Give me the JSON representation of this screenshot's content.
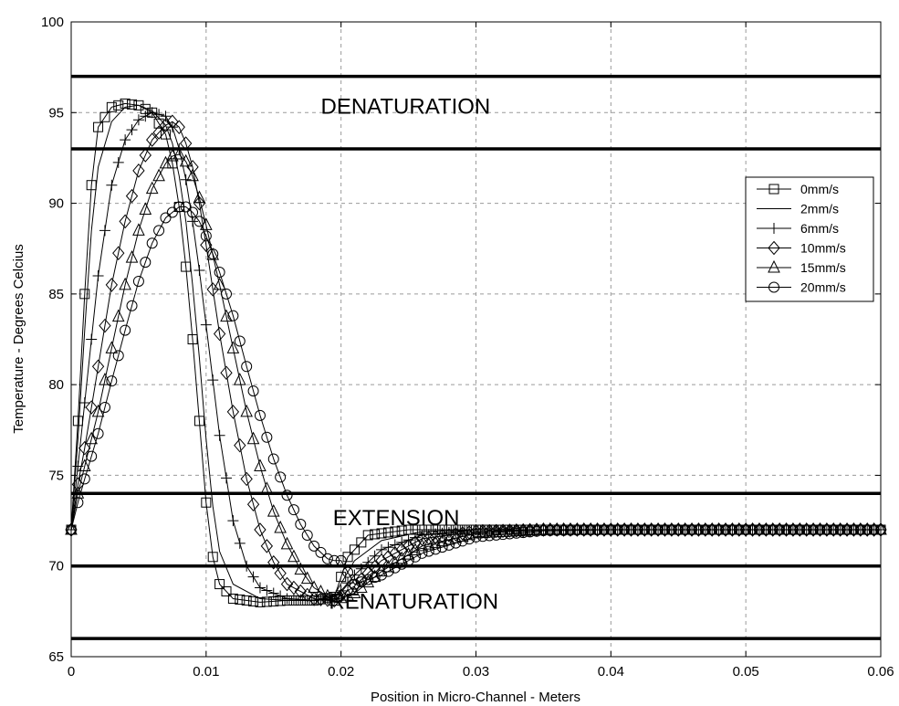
{
  "chart_data": {
    "type": "line",
    "title": "",
    "xlabel": "Position in Micro-Channel - Meters",
    "ylabel": "Temperature - Degrees Celcius",
    "xlim": [
      0,
      0.06
    ],
    "ylim": [
      65,
      100
    ],
    "x_ticks": [
      0,
      0.01,
      0.02,
      0.03,
      0.04,
      0.05,
      0.06
    ],
    "x_tick_labels": [
      "0",
      "0.01",
      "0.02",
      "0.03",
      "0.04",
      "0.05",
      "0.06"
    ],
    "y_ticks": [
      65,
      70,
      75,
      80,
      85,
      90,
      95,
      100
    ],
    "y_tick_labels": [
      "65",
      "70",
      "75",
      "80",
      "85",
      "90",
      "95",
      "100"
    ],
    "grid": true,
    "legend_position": "right",
    "reference_lines": [
      97,
      93,
      74,
      70,
      66
    ],
    "annotations": [
      {
        "text": "DENATURATION",
        "x": 0.0185,
        "y": 95.4
      },
      {
        "text": "EXTENSION",
        "x": 0.0194,
        "y": 72.7
      },
      {
        "text": "RENATURATION",
        "x": 0.0191,
        "y": 68.1
      }
    ],
    "series": [
      {
        "name": "0mm/s",
        "marker": "square",
        "points": [
          [
            0,
            72
          ],
          [
            0.0005,
            78
          ],
          [
            0.001,
            85
          ],
          [
            0.0015,
            91
          ],
          [
            0.002,
            94.2
          ],
          [
            0.003,
            95.3
          ],
          [
            0.004,
            95.5
          ],
          [
            0.005,
            95.4
          ],
          [
            0.006,
            95
          ],
          [
            0.007,
            93.8
          ],
          [
            0.0075,
            92.2
          ],
          [
            0.008,
            89.8
          ],
          [
            0.0085,
            86.5
          ],
          [
            0.009,
            82.5
          ],
          [
            0.0095,
            78
          ],
          [
            0.01,
            73.5
          ],
          [
            0.0105,
            70.5
          ],
          [
            0.011,
            69
          ],
          [
            0.012,
            68.2
          ],
          [
            0.014,
            68
          ],
          [
            0.016,
            68.1
          ],
          [
            0.018,
            68.1
          ],
          [
            0.0195,
            68.3
          ],
          [
            0.0205,
            70.5
          ],
          [
            0.022,
            71.7
          ],
          [
            0.025,
            72
          ],
          [
            0.03,
            72
          ],
          [
            0.04,
            72
          ],
          [
            0.05,
            72
          ],
          [
            0.06,
            72
          ]
        ]
      },
      {
        "name": "2mm/s",
        "marker": "none",
        "points": [
          [
            0,
            72
          ],
          [
            0.0005,
            77
          ],
          [
            0.001,
            83
          ],
          [
            0.0015,
            88.5
          ],
          [
            0.002,
            92
          ],
          [
            0.003,
            94.5
          ],
          [
            0.004,
            95.3
          ],
          [
            0.005,
            95.4
          ],
          [
            0.006,
            95.1
          ],
          [
            0.007,
            94.3
          ],
          [
            0.0075,
            93.3
          ],
          [
            0.008,
            91.5
          ],
          [
            0.0085,
            89
          ],
          [
            0.009,
            85.5
          ],
          [
            0.0095,
            81.5
          ],
          [
            0.01,
            77
          ],
          [
            0.0105,
            73.3
          ],
          [
            0.011,
            70.8
          ],
          [
            0.012,
            69
          ],
          [
            0.014,
            68.2
          ],
          [
            0.016,
            68.1
          ],
          [
            0.018,
            68.1
          ],
          [
            0.0195,
            68.4
          ],
          [
            0.021,
            70.3
          ],
          [
            0.023,
            71.4
          ],
          [
            0.026,
            71.9
          ],
          [
            0.03,
            72
          ],
          [
            0.04,
            72
          ],
          [
            0.05,
            72
          ],
          [
            0.06,
            72
          ]
        ]
      },
      {
        "name": "6mm/s",
        "marker": "plus",
        "points": [
          [
            0,
            72
          ],
          [
            0.0005,
            75.5
          ],
          [
            0.001,
            79
          ],
          [
            0.002,
            86
          ],
          [
            0.003,
            91
          ],
          [
            0.004,
            93.5
          ],
          [
            0.005,
            94.6
          ],
          [
            0.006,
            95
          ],
          [
            0.007,
            94.8
          ],
          [
            0.0075,
            94.2
          ],
          [
            0.008,
            93
          ],
          [
            0.0085,
            91.3
          ],
          [
            0.009,
            89
          ],
          [
            0.0095,
            86.3
          ],
          [
            0.01,
            83.3
          ],
          [
            0.011,
            77.2
          ],
          [
            0.012,
            72.5
          ],
          [
            0.013,
            70
          ],
          [
            0.014,
            68.8
          ],
          [
            0.016,
            68.2
          ],
          [
            0.018,
            68.1
          ],
          [
            0.0195,
            68.2
          ],
          [
            0.021,
            69.5
          ],
          [
            0.023,
            70.9
          ],
          [
            0.026,
            71.7
          ],
          [
            0.03,
            72
          ],
          [
            0.04,
            72
          ],
          [
            0.05,
            72
          ],
          [
            0.06,
            72
          ]
        ]
      },
      {
        "name": "10mm/s",
        "marker": "diamond",
        "points": [
          [
            0,
            72
          ],
          [
            0.0005,
            74.5
          ],
          [
            0.001,
            76.5
          ],
          [
            0.002,
            81
          ],
          [
            0.003,
            85.5
          ],
          [
            0.004,
            89
          ],
          [
            0.005,
            91.8
          ],
          [
            0.006,
            93.5
          ],
          [
            0.007,
            94.3
          ],
          [
            0.0075,
            94.5
          ],
          [
            0.008,
            94.2
          ],
          [
            0.0085,
            93.3
          ],
          [
            0.009,
            92
          ],
          [
            0.0095,
            90
          ],
          [
            0.01,
            87.7
          ],
          [
            0.011,
            82.8
          ],
          [
            0.012,
            78.5
          ],
          [
            0.013,
            74.8
          ],
          [
            0.014,
            72
          ],
          [
            0.015,
            70.2
          ],
          [
            0.016,
            69
          ],
          [
            0.018,
            68.2
          ],
          [
            0.0195,
            68.1
          ],
          [
            0.021,
            68.9
          ],
          [
            0.023,
            70.3
          ],
          [
            0.026,
            71.5
          ],
          [
            0.03,
            71.9
          ],
          [
            0.035,
            72
          ],
          [
            0.04,
            72
          ],
          [
            0.05,
            72
          ],
          [
            0.06,
            72
          ]
        ]
      },
      {
        "name": "15mm/s",
        "marker": "triangle",
        "points": [
          [
            0,
            72
          ],
          [
            0.0005,
            74
          ],
          [
            0.001,
            75.5
          ],
          [
            0.002,
            78.5
          ],
          [
            0.003,
            82
          ],
          [
            0.004,
            85.5
          ],
          [
            0.005,
            88.5
          ],
          [
            0.006,
            90.8
          ],
          [
            0.007,
            92.2
          ],
          [
            0.0075,
            92.6
          ],
          [
            0.008,
            92.7
          ],
          [
            0.0085,
            92.3
          ],
          [
            0.009,
            91.5
          ],
          [
            0.0095,
            90.3
          ],
          [
            0.01,
            88.8
          ],
          [
            0.011,
            85.5
          ],
          [
            0.012,
            82
          ],
          [
            0.013,
            78.5
          ],
          [
            0.014,
            75.5
          ],
          [
            0.015,
            73
          ],
          [
            0.016,
            71.2
          ],
          [
            0.017,
            69.8
          ],
          [
            0.018,
            68.8
          ],
          [
            0.0195,
            68.1
          ],
          [
            0.021,
            68.5
          ],
          [
            0.023,
            69.7
          ],
          [
            0.026,
            71.1
          ],
          [
            0.03,
            71.8
          ],
          [
            0.035,
            72
          ],
          [
            0.04,
            72
          ],
          [
            0.05,
            72
          ],
          [
            0.06,
            72
          ]
        ]
      },
      {
        "name": "20mm/s",
        "marker": "circle",
        "points": [
          [
            0,
            72
          ],
          [
            0.0005,
            73.5
          ],
          [
            0.001,
            74.8
          ],
          [
            0.002,
            77.3
          ],
          [
            0.003,
            80.2
          ],
          [
            0.004,
            83
          ],
          [
            0.005,
            85.7
          ],
          [
            0.006,
            87.8
          ],
          [
            0.007,
            89.2
          ],
          [
            0.008,
            89.8
          ],
          [
            0.0085,
            89.8
          ],
          [
            0.009,
            89.5
          ],
          [
            0.0095,
            89
          ],
          [
            0.01,
            88.2
          ],
          [
            0.011,
            86.2
          ],
          [
            0.012,
            83.8
          ],
          [
            0.013,
            81
          ],
          [
            0.014,
            78.3
          ],
          [
            0.015,
            75.9
          ],
          [
            0.016,
            73.9
          ],
          [
            0.017,
            72.3
          ],
          [
            0.018,
            71.1
          ],
          [
            0.019,
            70.4
          ],
          [
            0.0195,
            70.3
          ],
          [
            0.02,
            70.3
          ],
          [
            0.021,
            69
          ],
          [
            0.023,
            69.5
          ],
          [
            0.026,
            70.7
          ],
          [
            0.03,
            71.6
          ],
          [
            0.035,
            71.95
          ],
          [
            0.04,
            72
          ],
          [
            0.05,
            72
          ],
          [
            0.06,
            72
          ]
        ]
      }
    ]
  }
}
